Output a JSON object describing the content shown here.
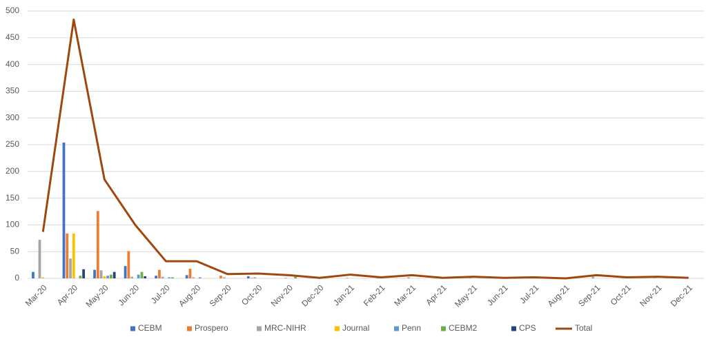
{
  "chart_data": {
    "type": "bar",
    "categories": [
      "Mar-20",
      "Apr-20",
      "May-20",
      "Jun-20",
      "Jul-20",
      "Aug-20",
      "Sep-20",
      "Oct-20",
      "Nov-20",
      "Dec-20",
      "Jan-21",
      "Feb-21",
      "Mar-21",
      "Apr-21",
      "May-21",
      "Jun-21",
      "Jul-21",
      "Aug-21",
      "Sep-21",
      "Oct-21",
      "Nov-21",
      "Dec-21"
    ],
    "series": [
      {
        "name": "CEBM",
        "color": "#4472c4",
        "values": [
          12,
          254,
          16,
          23,
          5,
          6,
          0,
          4,
          0,
          0,
          0,
          0,
          0,
          0,
          0,
          0,
          0,
          0,
          0,
          0,
          0,
          0
        ]
      },
      {
        "name": "Prospero",
        "color": "#ed7d31",
        "values": [
          0,
          84,
          126,
          51,
          16,
          18,
          5,
          1,
          0,
          0,
          0,
          0,
          0,
          0,
          0,
          0,
          0,
          0,
          0,
          0,
          0,
          0
        ]
      },
      {
        "name": "MRC-NIHR",
        "color": "#a5a5a5",
        "values": [
          72,
          37,
          15,
          3,
          3,
          2,
          2,
          2,
          1,
          1,
          1,
          1,
          2,
          1,
          1,
          1,
          1,
          0,
          3,
          1,
          1,
          1
        ]
      },
      {
        "name": "Journal",
        "color": "#ffc000",
        "values": [
          2,
          84,
          4,
          0,
          0,
          0,
          0,
          0,
          0,
          0,
          0,
          0,
          0,
          0,
          0,
          0,
          0,
          0,
          0,
          0,
          0,
          0
        ]
      },
      {
        "name": "Penn",
        "color": "#5b9bd5",
        "values": [
          0,
          0,
          5,
          7,
          2,
          2,
          0,
          0,
          0,
          0,
          0,
          0,
          0,
          0,
          0,
          0,
          0,
          0,
          0,
          0,
          0,
          0
        ]
      },
      {
        "name": "CEBM2",
        "color": "#70ad47",
        "values": [
          0,
          5,
          7,
          12,
          2,
          0,
          0,
          0,
          3,
          0,
          0,
          0,
          0,
          0,
          0,
          0,
          0,
          0,
          0,
          0,
          0,
          0
        ]
      },
      {
        "name": "CPS",
        "color": "#264478",
        "values": [
          0,
          17,
          12,
          4,
          0,
          0,
          0,
          0,
          0,
          0,
          0,
          0,
          0,
          0,
          0,
          0,
          0,
          0,
          0,
          0,
          0,
          0
        ]
      },
      {
        "name": "Total",
        "color": "#9e480e",
        "type": "line",
        "values": [
          87,
          484,
          185,
          100,
          32,
          32,
          8,
          9,
          6,
          1,
          7,
          2,
          6,
          1,
          3,
          1,
          2,
          0,
          6,
          2,
          3,
          1
        ]
      }
    ],
    "ylim": [
      0,
      500
    ],
    "yticks": [
      0,
      50,
      100,
      150,
      200,
      250,
      300,
      350,
      400,
      450,
      500
    ],
    "grid": true,
    "legend": "bottom"
  }
}
